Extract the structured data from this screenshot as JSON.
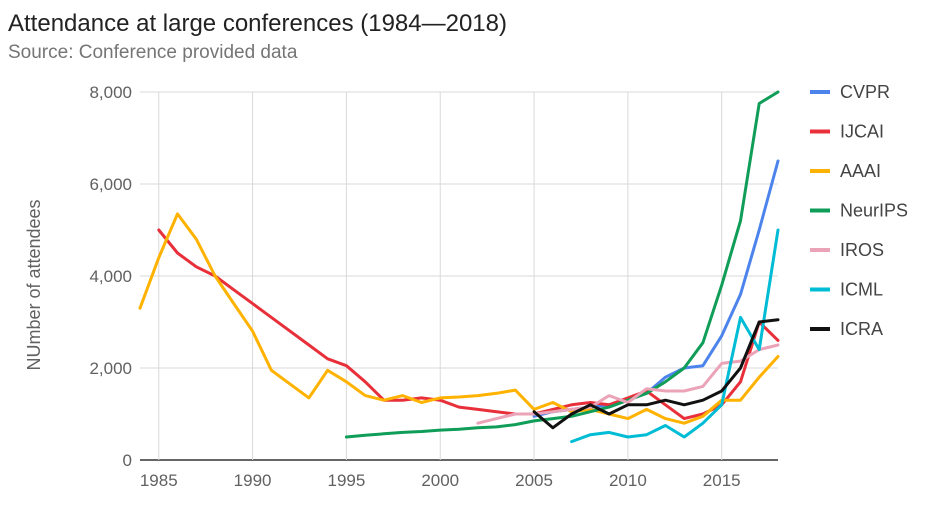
{
  "chart_data": {
    "type": "line",
    "title": "Attendance at large conferences (1984—2018)",
    "subtitle": "Source: Conference provided data",
    "xlabel": "",
    "ylabel": "NUmber of attendees",
    "xlim": [
      1984,
      2018
    ],
    "ylim": [
      0,
      8000
    ],
    "x_ticks": [
      1985,
      1990,
      1995,
      2000,
      2005,
      2010,
      2015
    ],
    "y_ticks": [
      0,
      2000,
      4000,
      6000,
      8000
    ],
    "y_tick_labels": [
      "0",
      "2,000",
      "4,000",
      "6,000",
      "8,000"
    ],
    "grid": true,
    "legend_position": "right",
    "series": [
      {
        "name": "CVPR",
        "color": "#4C84EC",
        "points": [
          [
            2005,
            950
          ],
          [
            2006,
            1050
          ],
          [
            2007,
            1100
          ],
          [
            2008,
            1150
          ],
          [
            2009,
            1200
          ],
          [
            2010,
            1300
          ],
          [
            2011,
            1450
          ],
          [
            2012,
            1800
          ],
          [
            2013,
            2000
          ],
          [
            2014,
            2050
          ],
          [
            2015,
            2700
          ],
          [
            2016,
            3600
          ],
          [
            2017,
            5000
          ],
          [
            2018,
            6500
          ]
        ]
      },
      {
        "name": "IJCAI",
        "color": "#E8303A",
        "points": [
          [
            1985,
            5000
          ],
          [
            1986,
            4500
          ],
          [
            1987,
            4200
          ],
          [
            1988,
            4000
          ],
          [
            1989,
            3700
          ],
          [
            1990,
            3400
          ],
          [
            1991,
            3100
          ],
          [
            1992,
            2800
          ],
          [
            1993,
            2500
          ],
          [
            1994,
            2200
          ],
          [
            1995,
            2050
          ],
          [
            1996,
            1700
          ],
          [
            1997,
            1300
          ],
          [
            1998,
            1300
          ],
          [
            1999,
            1350
          ],
          [
            2000,
            1300
          ],
          [
            2001,
            1150
          ],
          [
            2002,
            1100
          ],
          [
            2003,
            1050
          ],
          [
            2004,
            1000
          ],
          [
            2005,
            1000
          ],
          [
            2006,
            1100
          ],
          [
            2007,
            1200
          ],
          [
            2008,
            1250
          ],
          [
            2009,
            1200
          ],
          [
            2010,
            1350
          ],
          [
            2011,
            1500
          ],
          [
            2012,
            1200
          ],
          [
            2013,
            900
          ],
          [
            2014,
            1000
          ],
          [
            2015,
            1200
          ],
          [
            2016,
            1700
          ],
          [
            2017,
            3000
          ],
          [
            2018,
            2600
          ]
        ]
      },
      {
        "name": "AAAI",
        "color": "#FFB300",
        "points": [
          [
            1984,
            3300
          ],
          [
            1985,
            4400
          ],
          [
            1986,
            5350
          ],
          [
            1987,
            4800
          ],
          [
            1988,
            4000
          ],
          [
            1989,
            3400
          ],
          [
            1990,
            2800
          ],
          [
            1991,
            1950
          ],
          [
            1992,
            1650
          ],
          [
            1993,
            1350
          ],
          [
            1994,
            1950
          ],
          [
            1995,
            1700
          ],
          [
            1996,
            1400
          ],
          [
            1997,
            1300
          ],
          [
            1998,
            1400
          ],
          [
            1999,
            1250
          ],
          [
            2000,
            1350
          ],
          [
            2001,
            1370
          ],
          [
            2002,
            1400
          ],
          [
            2003,
            1450
          ],
          [
            2004,
            1520
          ],
          [
            2005,
            1100
          ],
          [
            2006,
            1250
          ],
          [
            2007,
            1050
          ],
          [
            2008,
            1100
          ],
          [
            2009,
            1000
          ],
          [
            2010,
            900
          ],
          [
            2011,
            1100
          ],
          [
            2012,
            900
          ],
          [
            2013,
            800
          ],
          [
            2014,
            950
          ],
          [
            2015,
            1300
          ],
          [
            2016,
            1300
          ],
          [
            2017,
            1800
          ],
          [
            2018,
            2250
          ]
        ]
      },
      {
        "name": "NeurIPS",
        "color": "#0F9D58",
        "points": [
          [
            1995,
            500
          ],
          [
            1996,
            540
          ],
          [
            1997,
            570
          ],
          [
            1998,
            600
          ],
          [
            1999,
            620
          ],
          [
            2000,
            650
          ],
          [
            2001,
            670
          ],
          [
            2002,
            700
          ],
          [
            2003,
            720
          ],
          [
            2004,
            770
          ],
          [
            2005,
            850
          ],
          [
            2006,
            900
          ],
          [
            2007,
            950
          ],
          [
            2008,
            1050
          ],
          [
            2009,
            1150
          ],
          [
            2010,
            1300
          ],
          [
            2011,
            1450
          ],
          [
            2012,
            1700
          ],
          [
            2013,
            2000
          ],
          [
            2014,
            2550
          ],
          [
            2015,
            3800
          ],
          [
            2016,
            5200
          ],
          [
            2017,
            7750
          ],
          [
            2018,
            8000
          ]
        ]
      },
      {
        "name": "IROS",
        "color": "#EBA3B8",
        "points": [
          [
            2002,
            800
          ],
          [
            2003,
            900
          ],
          [
            2004,
            1000
          ],
          [
            2005,
            1000
          ],
          [
            2006,
            1050
          ],
          [
            2007,
            1100
          ],
          [
            2008,
            1150
          ],
          [
            2009,
            1400
          ],
          [
            2010,
            1250
          ],
          [
            2011,
            1550
          ],
          [
            2012,
            1500
          ],
          [
            2013,
            1500
          ],
          [
            2014,
            1600
          ],
          [
            2015,
            2100
          ],
          [
            2016,
            2150
          ],
          [
            2017,
            2400
          ],
          [
            2018,
            2500
          ]
        ]
      },
      {
        "name": "ICML",
        "color": "#00BCD4",
        "points": [
          [
            2007,
            400
          ],
          [
            2008,
            550
          ],
          [
            2009,
            600
          ],
          [
            2010,
            500
          ],
          [
            2011,
            550
          ],
          [
            2012,
            750
          ],
          [
            2013,
            500
          ],
          [
            2014,
            800
          ],
          [
            2015,
            1200
          ],
          [
            2016,
            3100
          ],
          [
            2017,
            2400
          ],
          [
            2018,
            5000
          ]
        ]
      },
      {
        "name": "ICRA",
        "color": "#111111",
        "points": [
          [
            2005,
            1050
          ],
          [
            2006,
            700
          ],
          [
            2007,
            1000
          ],
          [
            2008,
            1200
          ],
          [
            2009,
            1000
          ],
          [
            2010,
            1200
          ],
          [
            2011,
            1200
          ],
          [
            2012,
            1300
          ],
          [
            2013,
            1200
          ],
          [
            2014,
            1300
          ],
          [
            2015,
            1500
          ],
          [
            2016,
            2000
          ],
          [
            2017,
            3000
          ],
          [
            2018,
            3050
          ]
        ]
      }
    ]
  }
}
